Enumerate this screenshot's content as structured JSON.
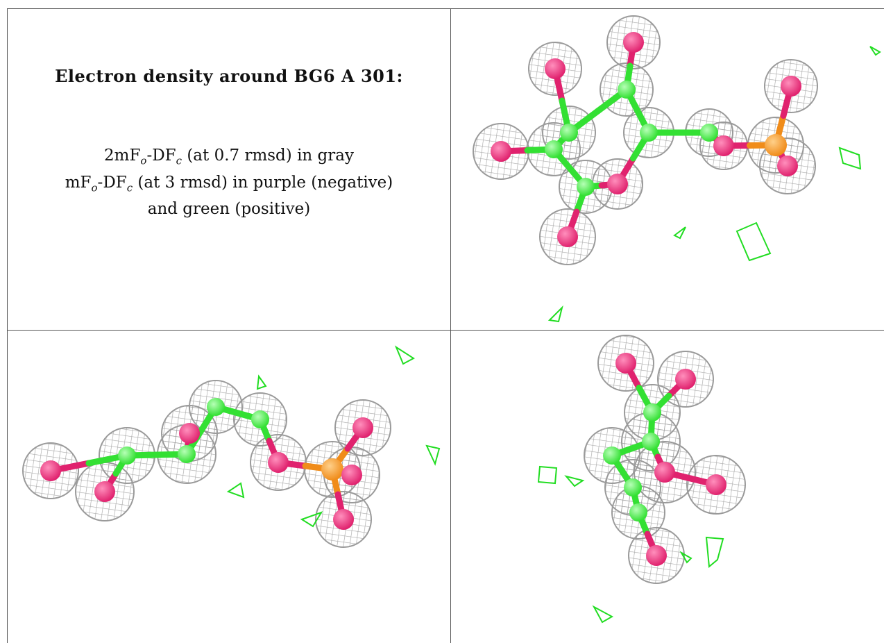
{
  "title": "Electron density around BG6 A 301:",
  "legend": {
    "line1_pre": "2mF",
    "line1_sub1": "o",
    "line1_mid": "-DF",
    "line1_sub2": "c",
    "line1_post": " (at 0.7 rmsd) in gray",
    "line2_pre": "mF",
    "line2_sub1": "o",
    "line2_mid": "-DF",
    "line2_sub2": "c",
    "line2_post": " (at 3 rmsd) in purple (negative)",
    "line3": "and green (positive)"
  },
  "colors": {
    "mesh": "#9a9a9a",
    "carbon": "#33e033",
    "oxygen": "#e0226e",
    "phosphorus": "#f08c1a",
    "positive_density": "#22dd22",
    "negative_density": "#cc22cc"
  },
  "views": [
    {
      "name": "view-top"
    },
    {
      "name": "view-side"
    },
    {
      "name": "view-end"
    }
  ]
}
